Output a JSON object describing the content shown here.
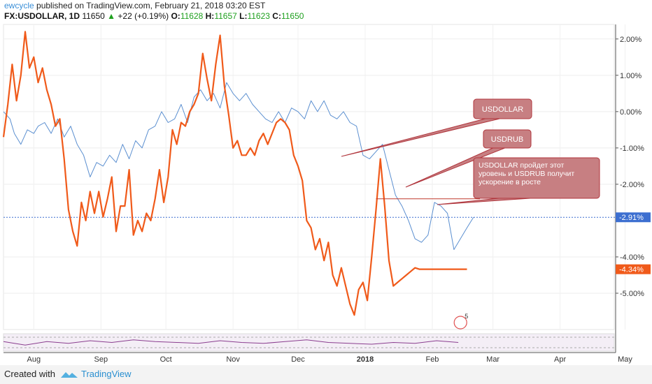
{
  "header": {
    "user": "ewcycle",
    "published": "published on TradingView.com, February 21, 2018 03:20 EST"
  },
  "symbol_line": {
    "symbol": "FX:USDOLLAR, 1D",
    "price": "11650",
    "change": "+22 (+0.19%)",
    "o_label": "O:",
    "o": "11628",
    "h_label": "H:",
    "h": "11657",
    "l_label": "L:",
    "l": "11623",
    "c_label": "C:",
    "c": "11650"
  },
  "footer": {
    "created_with": "Created with",
    "brand": "TradingView"
  },
  "colors": {
    "usdollar": "#5b8fd0",
    "usdrub": "#f05a1a",
    "rsi": "#8a3d8f",
    "callout_fill": "#c77f82",
    "callout_stroke": "#b0353c",
    "marker_line": "#c0392b"
  },
  "chart_data": {
    "type": "line",
    "ylim": [
      -6.0,
      2.4
    ],
    "yticks": [
      "2.00%",
      "1.00%",
      "0.00%",
      "-1.00%",
      "-2.00%",
      "-4.00%",
      "-5.00%"
    ],
    "ytick_values": [
      2.0,
      1.0,
      0.0,
      -1.0,
      -2.0,
      -4.0,
      -5.0
    ],
    "xticks": [
      "Aug",
      "Sep",
      "Oct",
      "Nov",
      "Dec",
      "2018",
      "Feb",
      "Mar",
      "Apr",
      "May"
    ],
    "xtick_days": [
      14,
      45,
      75,
      106,
      136,
      167,
      198,
      226,
      257,
      287
    ],
    "x_unit": "days since Jul 18, 2017",
    "series": [
      {
        "name": "USDOLLAR",
        "color": "#5b8fd0",
        "last_label": "-2.91%",
        "last_value": -2.91,
        "x": [
          0,
          3,
          5,
          8,
          11,
          14,
          16,
          19,
          22,
          25,
          28,
          31,
          34,
          37,
          40,
          43,
          46,
          49,
          52,
          55,
          58,
          61,
          64,
          67,
          70,
          73,
          76,
          79,
          82,
          85,
          88,
          91,
          94,
          97,
          100,
          103,
          106,
          109,
          112,
          115,
          118,
          121,
          124,
          127,
          130,
          133,
          136,
          139,
          142,
          145,
          148,
          151,
          154,
          157,
          160,
          163,
          166,
          169,
          172,
          175,
          178,
          181,
          184,
          187,
          190,
          193,
          196,
          199,
          202,
          205,
          208,
          211,
          214,
          217
        ],
        "y": [
          0.0,
          -0.2,
          -0.6,
          -0.9,
          -0.5,
          -0.6,
          -0.4,
          -0.3,
          -0.6,
          -0.2,
          -0.7,
          -0.4,
          -0.9,
          -1.2,
          -1.8,
          -1.4,
          -1.5,
          -1.2,
          -1.4,
          -0.9,
          -1.3,
          -0.8,
          -1.0,
          -0.5,
          -0.4,
          0.0,
          -0.3,
          -0.2,
          0.2,
          -0.3,
          0.4,
          0.6,
          0.3,
          0.5,
          0.1,
          0.8,
          0.5,
          0.3,
          0.5,
          0.2,
          0.0,
          -0.2,
          -0.3,
          0.0,
          -0.3,
          0.1,
          0.0,
          -0.2,
          0.3,
          0.0,
          0.3,
          -0.1,
          -0.2,
          0.0,
          -0.3,
          -0.4,
          -1.2,
          -1.3,
          -1.1,
          -0.9,
          -1.6,
          -2.3,
          -2.6,
          -3.0,
          -3.5,
          -3.6,
          -3.4,
          -2.5,
          -2.6,
          -2.8,
          -3.8,
          -3.5,
          -3.2,
          -2.91
        ]
      },
      {
        "name": "USDRUB",
        "color": "#f05a1a",
        "last_label": "-4.34%",
        "last_value": -4.34,
        "x": [
          0,
          2,
          4,
          6,
          8,
          10,
          12,
          14,
          16,
          18,
          20,
          22,
          24,
          26,
          28,
          30,
          32,
          34,
          36,
          38,
          40,
          42,
          44,
          46,
          48,
          50,
          52,
          54,
          56,
          58,
          60,
          62,
          64,
          66,
          68,
          70,
          72,
          74,
          76,
          78,
          80,
          82,
          84,
          86,
          88,
          90,
          92,
          94,
          96,
          98,
          100,
          102,
          104,
          106,
          108,
          110,
          112,
          114,
          116,
          118,
          120,
          122,
          124,
          126,
          128,
          130,
          132,
          134,
          136,
          138,
          140,
          142,
          144,
          146,
          148,
          150,
          152,
          154,
          156,
          158,
          160,
          162,
          164,
          166,
          168,
          170,
          172,
          174,
          176,
          178,
          180,
          182,
          184,
          186,
          188,
          190,
          192,
          194,
          196,
          198,
          200,
          202,
          204,
          206,
          208,
          210,
          212,
          214
        ],
        "y": [
          -0.7,
          0.2,
          1.3,
          0.3,
          1.0,
          2.2,
          1.2,
          1.5,
          0.8,
          1.2,
          0.6,
          0.2,
          -0.4,
          -0.2,
          -1.3,
          -2.7,
          -3.3,
          -3.7,
          -2.5,
          -3.0,
          -2.2,
          -2.8,
          -2.2,
          -2.9,
          -2.4,
          -1.8,
          -3.3,
          -2.6,
          -2.6,
          -1.6,
          -3.4,
          -3.0,
          -3.3,
          -2.8,
          -3.0,
          -2.4,
          -1.6,
          -2.5,
          -1.8,
          -0.5,
          -0.9,
          -0.3,
          -0.4,
          0.0,
          0.2,
          0.5,
          1.6,
          0.9,
          0.3,
          1.3,
          2.1,
          0.7,
          -0.1,
          -1.0,
          -0.8,
          -1.2,
          -1.2,
          -1.0,
          -1.2,
          -0.8,
          -0.6,
          -0.9,
          -0.6,
          -0.3,
          -0.2,
          -0.3,
          -0.5,
          -1.2,
          -1.5,
          -1.9,
          -3.0,
          -3.2,
          -3.8,
          -3.5,
          -4.1,
          -3.6,
          -4.5,
          -4.8,
          -4.3,
          -4.8,
          -5.3,
          -5.6,
          -4.9,
          -4.7,
          -5.2,
          -4.0,
          -2.7,
          -1.3,
          -2.6,
          -4.1,
          -4.8,
          -4.7,
          -4.6,
          -4.5,
          -4.4,
          -4.3,
          -4.34,
          -4.34,
          -4.34,
          -4.34,
          -4.34,
          -4.34,
          -4.34,
          -4.34,
          -4.34,
          -4.34,
          -4.34,
          -4.34
        ]
      }
    ],
    "rsi": {
      "x": [
        0,
        10,
        20,
        30,
        40,
        50,
        60,
        70,
        80,
        90,
        100,
        110,
        120,
        130,
        140,
        150,
        160,
        170,
        180,
        190,
        200,
        210
      ],
      "y": [
        0.55,
        0.35,
        0.55,
        0.45,
        0.6,
        0.5,
        0.65,
        0.55,
        0.5,
        0.45,
        0.6,
        0.5,
        0.45,
        0.55,
        0.65,
        0.5,
        0.45,
        0.4,
        0.5,
        0.45,
        0.6,
        0.5
      ]
    },
    "annotations": [
      {
        "text": "USDOLLAR"
      },
      {
        "text": "USDRUB"
      },
      {
        "text": "USDOLLAR пройдет этот уровень и USDRUB получит ускорение в росте"
      }
    ],
    "horizontal_level": -2.4,
    "event_badge": "5"
  }
}
